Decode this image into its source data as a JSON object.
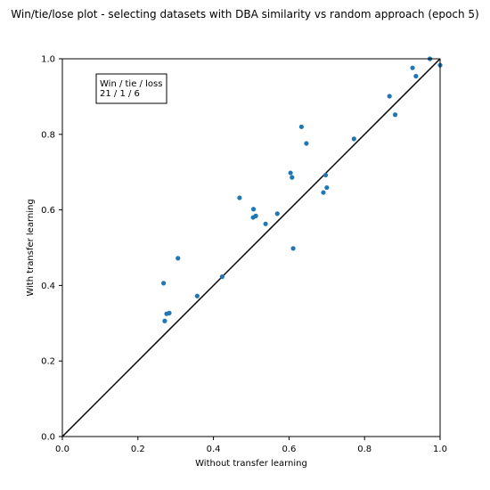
{
  "chart_data": {
    "type": "scatter",
    "title": "Win/tie/lose plot - selecting datasets with DBA similarity vs random approach (epoch 5)",
    "xlabel": "Without transfer learning",
    "ylabel": "With transfer learning",
    "xlim": [
      0.0,
      1.0
    ],
    "ylim": [
      0.0,
      1.0
    ],
    "xticks": [
      "0.0",
      "0.2",
      "0.4",
      "0.6",
      "0.8",
      "1.0"
    ],
    "yticks": [
      "0.0",
      "0.2",
      "0.4",
      "0.6",
      "0.8",
      "1.0"
    ],
    "grid": false,
    "point_color": "#1f77b4",
    "diagonal_color": "#000000",
    "annotation": {
      "line1": "Win / tie / loss",
      "line2": "21 / 1 / 6",
      "placement": "top-left"
    },
    "points": [
      {
        "x": 0.268,
        "y": 0.406
      },
      {
        "x": 0.271,
        "y": 0.306
      },
      {
        "x": 0.276,
        "y": 0.325
      },
      {
        "x": 0.283,
        "y": 0.327
      },
      {
        "x": 0.306,
        "y": 0.472
      },
      {
        "x": 0.357,
        "y": 0.372
      },
      {
        "x": 0.423,
        "y": 0.423
      },
      {
        "x": 0.469,
        "y": 0.632
      },
      {
        "x": 0.505,
        "y": 0.58
      },
      {
        "x": 0.506,
        "y": 0.602
      },
      {
        "x": 0.512,
        "y": 0.584
      },
      {
        "x": 0.538,
        "y": 0.563
      },
      {
        "x": 0.569,
        "y": 0.59
      },
      {
        "x": 0.604,
        "y": 0.698
      },
      {
        "x": 0.608,
        "y": 0.686
      },
      {
        "x": 0.611,
        "y": 0.498
      },
      {
        "x": 0.633,
        "y": 0.82
      },
      {
        "x": 0.646,
        "y": 0.776
      },
      {
        "x": 0.691,
        "y": 0.646
      },
      {
        "x": 0.697,
        "y": 0.692
      },
      {
        "x": 0.7,
        "y": 0.659
      },
      {
        "x": 0.772,
        "y": 0.788
      },
      {
        "x": 0.866,
        "y": 0.901
      },
      {
        "x": 0.881,
        "y": 0.852
      },
      {
        "x": 0.927,
        "y": 0.976
      },
      {
        "x": 0.936,
        "y": 0.954
      },
      {
        "x": 0.973,
        "y": 1.0
      },
      {
        "x": 1.0,
        "y": 0.983
      }
    ]
  }
}
